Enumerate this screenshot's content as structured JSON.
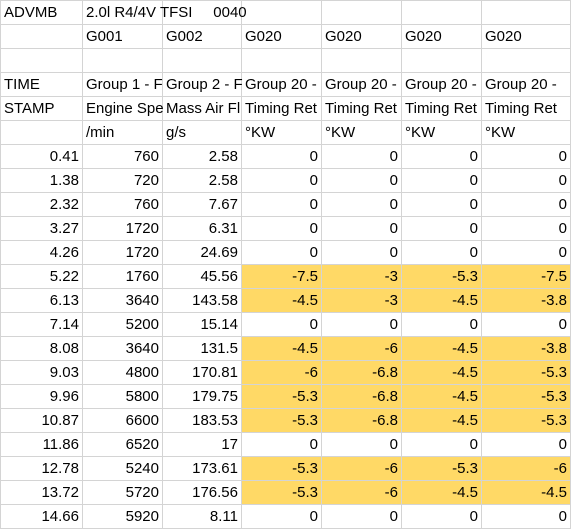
{
  "sheet": {
    "highlight_color": "#ffd966",
    "header_rows": [
      [
        "ADVMB",
        "2.0l R4/4V TFSI     0040",
        null,
        null,
        null,
        null,
        null
      ],
      [
        null,
        "G001",
        "G002",
        "G020",
        "G020",
        "G020",
        "G020"
      ],
      [
        null,
        null,
        null,
        null,
        null,
        null,
        null
      ],
      [
        "TIME",
        "Group 1 - F",
        "Group 2 - F",
        "Group 20 -",
        "Group 20 -",
        "Group 20 -",
        "Group 20 -"
      ],
      [
        "STAMP",
        "Engine Spe",
        "Mass Air Fl",
        "Timing Ret",
        "Timing Ret",
        "Timing Ret",
        "Timing Ret"
      ],
      [
        null,
        "/min",
        "g/s",
        "°KW",
        "°KW",
        "°KW",
        "°KW"
      ]
    ],
    "rows": [
      {
        "cells": [
          0.41,
          760,
          2.58,
          0,
          0,
          0,
          0
        ],
        "highlight": false
      },
      {
        "cells": [
          1.38,
          720,
          2.58,
          0,
          0,
          0,
          0
        ],
        "highlight": false
      },
      {
        "cells": [
          2.32,
          760,
          7.67,
          0,
          0,
          0,
          0
        ],
        "highlight": false
      },
      {
        "cells": [
          3.27,
          1720,
          6.31,
          0,
          0,
          0,
          0
        ],
        "highlight": false
      },
      {
        "cells": [
          4.26,
          1720,
          24.69,
          0,
          0,
          0,
          0
        ],
        "highlight": false
      },
      {
        "cells": [
          5.22,
          1760,
          45.56,
          -7.5,
          -3,
          -5.3,
          -7.5
        ],
        "highlight": true
      },
      {
        "cells": [
          6.13,
          3640,
          143.58,
          -4.5,
          -3,
          -4.5,
          -3.8
        ],
        "highlight": true
      },
      {
        "cells": [
          7.14,
          5200,
          15.14,
          0,
          0,
          0,
          0
        ],
        "highlight": false
      },
      {
        "cells": [
          8.08,
          3640,
          131.5,
          -4.5,
          -6,
          -4.5,
          -3.8
        ],
        "highlight": true
      },
      {
        "cells": [
          9.03,
          4800,
          170.81,
          -6,
          -6.8,
          -4.5,
          -5.3
        ],
        "highlight": true
      },
      {
        "cells": [
          9.96,
          5800,
          179.75,
          -5.3,
          -6.8,
          -4.5,
          -5.3
        ],
        "highlight": true
      },
      {
        "cells": [
          10.87,
          6600,
          183.53,
          -5.3,
          -6.8,
          -4.5,
          -5.3
        ],
        "highlight": true
      },
      {
        "cells": [
          11.86,
          6520,
          17,
          0,
          0,
          0,
          0
        ],
        "highlight": false
      },
      {
        "cells": [
          12.78,
          5240,
          173.61,
          -5.3,
          -6,
          -5.3,
          -6
        ],
        "highlight": true
      },
      {
        "cells": [
          13.72,
          5720,
          176.56,
          -5.3,
          -6,
          -4.5,
          -4.5
        ],
        "highlight": true
      },
      {
        "cells": [
          14.66,
          5920,
          8.11,
          0,
          0,
          0,
          0
        ],
        "highlight": false
      }
    ]
  }
}
